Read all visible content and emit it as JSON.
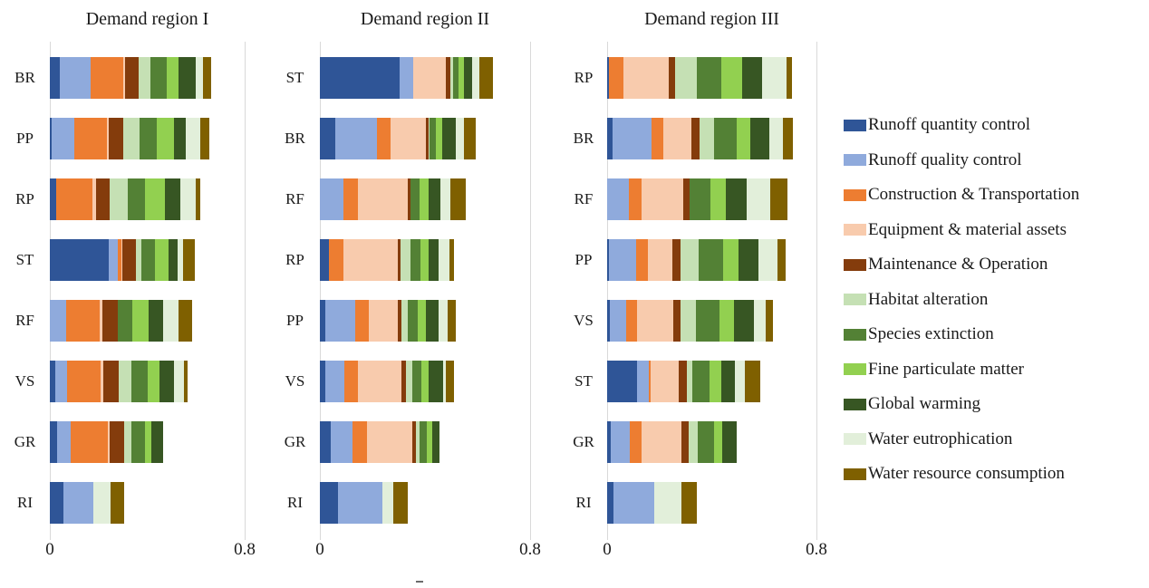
{
  "figure": {
    "background": "#ffffff",
    "gridline_color": "#d9d9d9",
    "text_color": "#1a1a1a"
  },
  "chart_data": {
    "type": "bar",
    "orientation": "horizontal",
    "stacked": true,
    "xlim": [
      0,
      0.8
    ],
    "xticks": [
      "0",
      "0.8"
    ],
    "grid": "vertical gridlines at 0 and 0.8 only",
    "legend_position": "right",
    "series": [
      {
        "name": "Runoff quantity control",
        "slug": "runoff-quantity-control",
        "color": "#2F5597"
      },
      {
        "name": "Runoff quality control",
        "slug": "runoff-quality-control",
        "color": "#8FAADC"
      },
      {
        "name": "Construction & Transportation",
        "slug": "construction-transportation",
        "color": "#ED7D31"
      },
      {
        "name": "Equipment & material assets",
        "slug": "equipment-material-assets",
        "color": "#F8CBAD"
      },
      {
        "name": "Maintenance & Operation",
        "slug": "maintenance-operation",
        "color": "#843C0C"
      },
      {
        "name": "Habitat alteration",
        "slug": "habitat-alteration",
        "color": "#C5E0B4"
      },
      {
        "name": "Species extinction",
        "slug": "species-extinction",
        "color": "#538135"
      },
      {
        "name": "Fine particulate matter",
        "slug": "fine-particulate-matter",
        "color": "#92D050"
      },
      {
        "name": "Global warming",
        "slug": "global-warming",
        "color": "#375623"
      },
      {
        "name": "Water eutrophication",
        "slug": "water-eutrophication",
        "color": "#E2EFDA"
      },
      {
        "name": "Water resource consumption",
        "slug": "water-resource-consumption",
        "color": "#7F6000"
      }
    ],
    "regions": [
      {
        "title": "Demand region I",
        "categories": [
          "BR",
          "PP",
          "RP",
          "ST",
          "RF",
          "VS",
          "GR",
          "RI"
        ],
        "values": [
          [
            0.041,
            0.125,
            0.134,
            0.009,
            0.056,
            0.048,
            0.068,
            0.048,
            0.069,
            0.031,
            0.035
          ],
          [
            0.009,
            0.091,
            0.134,
            0.009,
            0.06,
            0.064,
            0.071,
            0.071,
            0.05,
            0.058,
            0.038
          ],
          [
            0.025,
            0.0,
            0.15,
            0.013,
            0.056,
            0.075,
            0.073,
            0.08,
            0.063,
            0.066,
            0.015
          ],
          [
            0.242,
            0.038,
            0.013,
            0.004,
            0.056,
            0.024,
            0.056,
            0.054,
            0.038,
            0.023,
            0.046
          ],
          [
            0.0,
            0.066,
            0.138,
            0.013,
            0.063,
            0.0,
            0.059,
            0.066,
            0.059,
            0.066,
            0.055
          ],
          [
            0.021,
            0.048,
            0.141,
            0.009,
            0.063,
            0.053,
            0.066,
            0.05,
            0.059,
            0.04,
            0.015
          ],
          [
            0.031,
            0.056,
            0.15,
            0.01,
            0.059,
            0.029,
            0.056,
            0.025,
            0.05,
            0.0,
            0.0
          ],
          [
            0.056,
            0.123,
            0.0,
            0.0,
            0.0,
            0.0,
            0.0,
            0.0,
            0.0,
            0.072,
            0.055
          ]
        ]
      },
      {
        "title": "Demand region II",
        "categories": [
          "ST",
          "BR",
          "RF",
          "RP",
          "PP",
          "VS",
          "GR",
          "RI"
        ],
        "values": [
          [
            0.303,
            0.052,
            0.0,
            0.126,
            0.014,
            0.011,
            0.021,
            0.023,
            0.031,
            0.026,
            0.052
          ],
          [
            0.059,
            0.159,
            0.052,
            0.132,
            0.011,
            0.006,
            0.021,
            0.026,
            0.052,
            0.029,
            0.046
          ],
          [
            0.0,
            0.091,
            0.054,
            0.19,
            0.011,
            0.0,
            0.032,
            0.037,
            0.043,
            0.04,
            0.059
          ],
          [
            0.033,
            0.0,
            0.057,
            0.207,
            0.011,
            0.037,
            0.038,
            0.03,
            0.039,
            0.041,
            0.016
          ],
          [
            0.022,
            0.111,
            0.052,
            0.113,
            0.011,
            0.025,
            0.037,
            0.034,
            0.046,
            0.034,
            0.032
          ],
          [
            0.022,
            0.071,
            0.052,
            0.167,
            0.014,
            0.026,
            0.034,
            0.029,
            0.055,
            0.011,
            0.028
          ],
          [
            0.041,
            0.084,
            0.054,
            0.172,
            0.014,
            0.013,
            0.028,
            0.021,
            0.029,
            0.0,
            0.0
          ],
          [
            0.07,
            0.167,
            0.0,
            0.0,
            0.0,
            0.0,
            0.0,
            0.0,
            0.0,
            0.044,
            0.054
          ]
        ]
      },
      {
        "title": "Demand region III",
        "categories": [
          "RP",
          "BR",
          "RF",
          "PP",
          "VS",
          "ST",
          "GR",
          "RI"
        ],
        "values": [
          [
            0.008,
            0.0,
            0.055,
            0.171,
            0.025,
            0.084,
            0.095,
            0.077,
            0.078,
            0.092,
            0.021
          ],
          [
            0.02,
            0.148,
            0.048,
            0.107,
            0.029,
            0.058,
            0.087,
            0.05,
            0.072,
            0.052,
            0.038
          ],
          [
            0.0,
            0.084,
            0.048,
            0.159,
            0.023,
            0.0,
            0.081,
            0.06,
            0.078,
            0.089,
            0.069
          ],
          [
            0.006,
            0.106,
            0.044,
            0.095,
            0.03,
            0.069,
            0.092,
            0.062,
            0.073,
            0.075,
            0.032
          ],
          [
            0.009,
            0.063,
            0.043,
            0.138,
            0.029,
            0.058,
            0.09,
            0.054,
            0.077,
            0.044,
            0.029
          ],
          [
            0.113,
            0.048,
            0.005,
            0.107,
            0.031,
            0.023,
            0.066,
            0.044,
            0.052,
            0.038,
            0.058
          ],
          [
            0.015,
            0.072,
            0.046,
            0.15,
            0.029,
            0.035,
            0.063,
            0.029,
            0.058,
            0.0,
            0.0
          ],
          [
            0.023,
            0.156,
            0.0,
            0.0,
            0.0,
            0.0,
            0.0,
            0.0,
            0.0,
            0.104,
            0.061
          ]
        ]
      }
    ]
  }
}
